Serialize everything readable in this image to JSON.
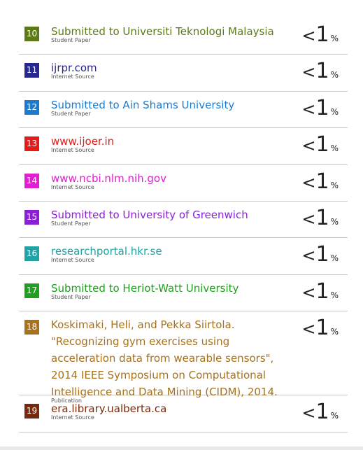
{
  "sources": [
    {
      "number": "10",
      "title": "Submitted to Universiti Teknologi Malaysia",
      "type": "Student Paper",
      "lt": "<",
      "pct": "1",
      "sign": "%",
      "color": "#5c7a18"
    },
    {
      "number": "11",
      "title": "ijrpr.com",
      "type": "Internet Source",
      "lt": "<",
      "pct": "1",
      "sign": "%",
      "color": "#27288e"
    },
    {
      "number": "12",
      "title": "Submitted to Ain Shams University",
      "type": "Student Paper",
      "lt": "<",
      "pct": "1",
      "sign": "%",
      "color": "#1a7bd2"
    },
    {
      "number": "13",
      "title": "www.ijoer.in",
      "type": "Internet Source",
      "lt": "<",
      "pct": "1",
      "sign": "%",
      "color": "#e61a1a"
    },
    {
      "number": "14",
      "title": "www.ncbi.nlm.nih.gov",
      "type": "Internet Source",
      "lt": "<",
      "pct": "1",
      "sign": "%",
      "color": "#e01fcf"
    },
    {
      "number": "15",
      "title": "Submitted to University of Greenwich",
      "type": "Student Paper",
      "lt": "<",
      "pct": "1",
      "sign": "%",
      "color": "#8a1fd6"
    },
    {
      "number": "16",
      "title": "researchportal.hkr.se",
      "type": "Internet Source",
      "lt": "<",
      "pct": "1",
      "sign": "%",
      "color": "#21a3a6"
    },
    {
      "number": "17",
      "title": "Submitted to Heriot-Watt University",
      "type": "Student Paper",
      "lt": "<",
      "pct": "1",
      "sign": "%",
      "color": "#1f9f1f"
    },
    {
      "number": "18",
      "title": "Koskimaki, Heli, and Pekka Siirtola. \"Recognizing gym exercises using acceleration data from wearable sensors\", 2014 IEEE Symposium on Computational Intelligence and Data Mining (CIDM), 2014.",
      "type": "Publication",
      "lt": "<",
      "pct": "1",
      "sign": "%",
      "color": "#a8711b"
    },
    {
      "number": "19",
      "title": "era.library.ualberta.ca",
      "type": "Internet Source",
      "lt": "<",
      "pct": "1",
      "sign": "%",
      "color": "#7a2a0c"
    }
  ]
}
